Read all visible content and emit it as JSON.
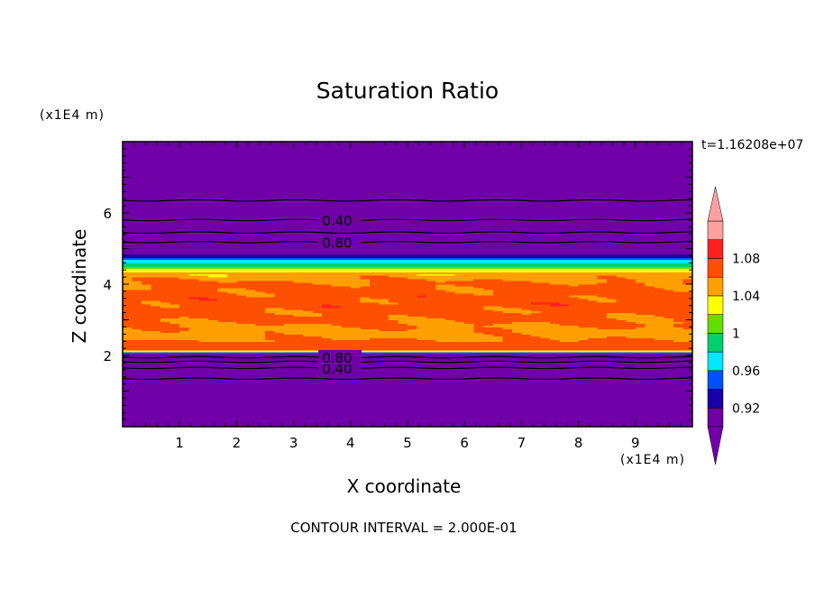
{
  "chart_data": {
    "type": "heatmap",
    "title": "Saturation Ratio",
    "xlabel": "X coordinate",
    "ylabel": "Z coordinate",
    "x_unit": "(x1E4 m)",
    "y_unit": "(x1E4 m)",
    "time_label": "t=1.16208e+07",
    "footer": "CONTOUR INTERVAL = 2.000E-01",
    "xlim": [
      0,
      10
    ],
    "ylim": [
      0,
      8
    ],
    "x_ticks": [
      "1",
      "2",
      "3",
      "4",
      "5",
      "6",
      "7",
      "8",
      "9"
    ],
    "y_ticks": [
      "2",
      "4",
      "6"
    ],
    "colorbar": {
      "levels": [
        0.92,
        0.96,
        1,
        1.04,
        1.08
      ],
      "tick_labels": [
        "0.92",
        "0.96",
        "1",
        "1.04",
        "1.08"
      ],
      "colors": [
        "#7000a8",
        "#1a00a8",
        "#0050ff",
        "#00e8ff",
        "#00d070",
        "#60e000",
        "#ffff00",
        "#ffa000",
        "#ff5000",
        "#ff2020",
        "#ffa0a0"
      ]
    },
    "vertical_profile": [
      {
        "z": 0.0,
        "v": 0.2
      },
      {
        "z": 1.8,
        "v": 0.3
      },
      {
        "z": 2.05,
        "v": 0.9
      },
      {
        "z": 2.15,
        "v": 1.08
      },
      {
        "z": 2.3,
        "v": 1.07
      },
      {
        "z": 2.6,
        "v": 1.05
      },
      {
        "z": 3.0,
        "v": 1.065
      },
      {
        "z": 3.5,
        "v": 1.07
      },
      {
        "z": 4.0,
        "v": 1.065
      },
      {
        "z": 4.3,
        "v": 1.045
      },
      {
        "z": 4.45,
        "v": 1.02
      },
      {
        "z": 4.6,
        "v": 0.98
      },
      {
        "z": 4.8,
        "v": 0.93
      },
      {
        "z": 5.0,
        "v": 0.9
      },
      {
        "z": 8.0,
        "v": 0.2
      }
    ],
    "contour_lines": [
      {
        "z": 1.35,
        "label": ""
      },
      {
        "z": 1.65,
        "label": "0.40"
      },
      {
        "z": 1.82,
        "label": ""
      },
      {
        "z": 1.95,
        "label": "0.80"
      },
      {
        "z": 5.18,
        "label": "0.80"
      },
      {
        "z": 5.45,
        "label": ""
      },
      {
        "z": 5.8,
        "label": "0.40"
      },
      {
        "z": 6.35,
        "label": ""
      }
    ]
  }
}
